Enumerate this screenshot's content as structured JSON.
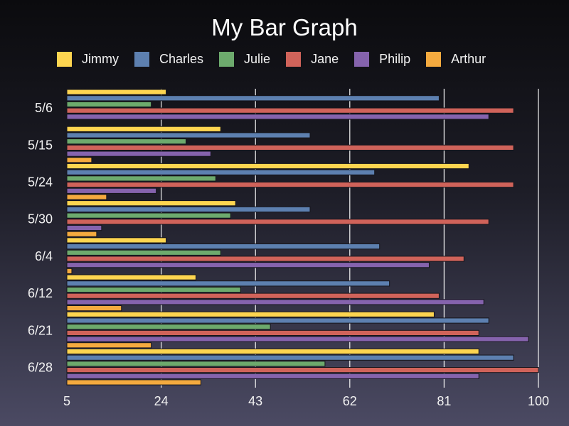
{
  "chart_data": {
    "type": "bar",
    "orientation": "horizontal",
    "title": "My Bar Graph",
    "xlabel": "",
    "ylabel": "",
    "xlim": [
      5,
      100
    ],
    "xticks": [
      5,
      24,
      43,
      62,
      81,
      100
    ],
    "grid": "vertical",
    "legend_position": "top",
    "categories": [
      "5/6",
      "5/15",
      "5/24",
      "5/30",
      "6/4",
      "6/12",
      "6/21",
      "6/28"
    ],
    "series": [
      {
        "name": "Jimmy",
        "color": "#fdd550",
        "values": [
          25,
          36,
          86,
          39,
          25,
          31,
          79,
          88
        ]
      },
      {
        "name": "Charles",
        "color": "#5d80b0",
        "values": [
          80,
          54,
          67,
          54,
          68,
          70,
          90,
          95
        ]
      },
      {
        "name": "Julie",
        "color": "#6daa6d",
        "values": [
          22,
          29,
          35,
          38,
          36,
          40,
          46,
          57
        ]
      },
      {
        "name": "Jane",
        "color": "#d0635a",
        "values": [
          95,
          95,
          95,
          90,
          85,
          80,
          88,
          100
        ]
      },
      {
        "name": "Philip",
        "color": "#8563ad",
        "values": [
          90,
          34,
          23,
          12,
          78,
          89,
          98,
          88
        ]
      },
      {
        "name": "Arthur",
        "color": "#f4aa3f",
        "values": [
          3,
          10,
          13,
          11,
          6,
          16,
          22,
          32
        ]
      }
    ]
  }
}
